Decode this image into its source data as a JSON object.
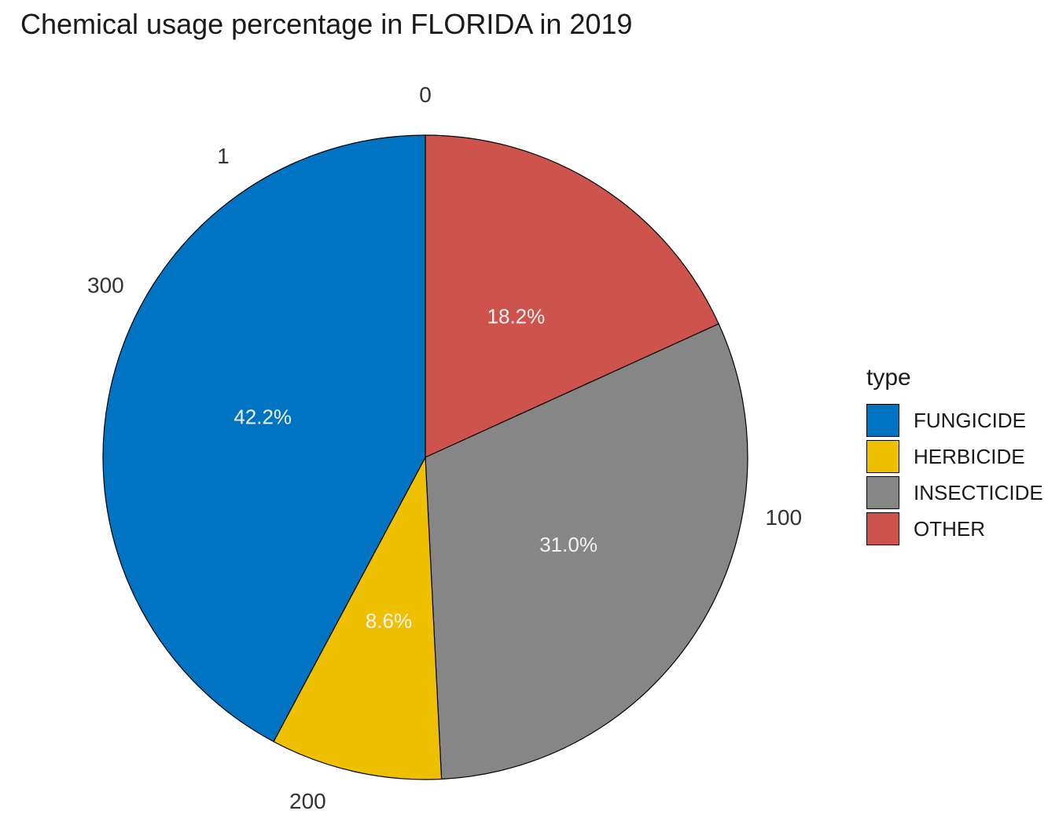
{
  "chart_data": {
    "type": "pie",
    "title": "Chemical usage percentage in FLORIDA in 2019",
    "legend_title": "type",
    "legend_position": "right",
    "slices": [
      {
        "label": "OTHER",
        "value": 18.2,
        "color": "#CD534C"
      },
      {
        "label": "INSECTICIDE",
        "value": 31.0,
        "color": "#868686"
      },
      {
        "label": "HERBICIDE",
        "value": 8.6,
        "color": "#EFC000"
      },
      {
        "label": "FUNGICIDE",
        "value": 42.2,
        "color": "#0073C2"
      }
    ],
    "slice_labels": [
      "18.2%",
      "31.0%",
      "8.6%",
      "42.2%"
    ],
    "legend": [
      {
        "label": "FUNGICIDE",
        "color": "#0073C2"
      },
      {
        "label": "HERBICIDE",
        "color": "#EFC000"
      },
      {
        "label": "INSECTICIDE",
        "color": "#868686"
      },
      {
        "label": "OTHER",
        "color": "#CD534C"
      }
    ],
    "theta_ticks": [
      {
        "label": "0",
        "value": 0
      },
      {
        "label": "100",
        "value": 100
      },
      {
        "label": "200",
        "value": 200
      },
      {
        "label": "300",
        "value": 300
      },
      {
        "label": "1",
        "value": 328
      }
    ],
    "theta_total": 362
  }
}
